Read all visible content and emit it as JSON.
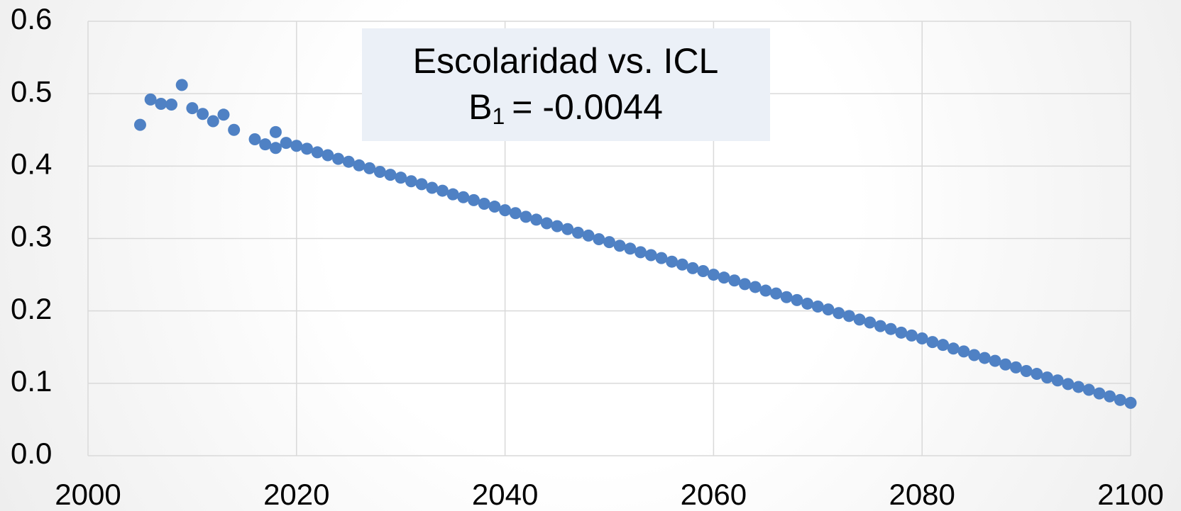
{
  "chart_data": {
    "type": "scatter",
    "title": "Escolaridad vs. ICL",
    "subtitle": {
      "text": "B",
      "sub": "1",
      "rest": "= -0.0044"
    },
    "series": [
      {
        "color": "#4f81c4",
        "x": [
          2005,
          2006,
          2007,
          2008,
          2009,
          2010,
          2011,
          2012,
          2013,
          2014,
          2016,
          2017,
          2018,
          2018,
          2019,
          2020,
          2021,
          2022,
          2023,
          2024,
          2025,
          2026,
          2027,
          2028,
          2029,
          2030,
          2031,
          2032,
          2033,
          2034,
          2035,
          2036,
          2037,
          2038,
          2039,
          2040,
          2041,
          2042,
          2043,
          2044,
          2045,
          2046,
          2047,
          2048,
          2049,
          2050,
          2051,
          2052,
          2053,
          2054,
          2055,
          2056,
          2057,
          2058,
          2059,
          2060,
          2061,
          2062,
          2063,
          2064,
          2065,
          2066,
          2067,
          2068,
          2069,
          2070,
          2071,
          2072,
          2073,
          2074,
          2075,
          2076,
          2077,
          2078,
          2079,
          2080,
          2081,
          2082,
          2083,
          2084,
          2085,
          2086,
          2087,
          2088,
          2089,
          2090,
          2091,
          2092,
          2093,
          2094,
          2095,
          2096,
          2097,
          2098,
          2099,
          2100
        ],
        "values": [
          0.457,
          0.492,
          0.486,
          0.485,
          0.512,
          0.48,
          0.472,
          0.462,
          0.471,
          0.45,
          0.437,
          0.43,
          0.447,
          0.425,
          0.432,
          0.428,
          0.424,
          0.419,
          0.415,
          0.41,
          0.406,
          0.401,
          0.397,
          0.392,
          0.388,
          0.384,
          0.379,
          0.375,
          0.37,
          0.366,
          0.361,
          0.357,
          0.353,
          0.348,
          0.344,
          0.339,
          0.335,
          0.33,
          0.326,
          0.321,
          0.317,
          0.313,
          0.308,
          0.304,
          0.299,
          0.295,
          0.29,
          0.286,
          0.281,
          0.277,
          0.273,
          0.268,
          0.264,
          0.259,
          0.255,
          0.25,
          0.246,
          0.242,
          0.237,
          0.233,
          0.228,
          0.224,
          0.219,
          0.215,
          0.21,
          0.206,
          0.202,
          0.197,
          0.193,
          0.188,
          0.184,
          0.179,
          0.175,
          0.17,
          0.166,
          0.162,
          0.157,
          0.153,
          0.148,
          0.144,
          0.139,
          0.135,
          0.131,
          0.126,
          0.122,
          0.117,
          0.113,
          0.108,
          0.104,
          0.099,
          0.095,
          0.091,
          0.086,
          0.082,
          0.077,
          0.073
        ]
      }
    ],
    "xlim": [
      2000,
      2100
    ],
    "xticks": [
      2000,
      2020,
      2040,
      2060,
      2080,
      2100
    ],
    "ylim": [
      0,
      0.6
    ],
    "yticks": [
      {
        "value": 0,
        "label": "0.0"
      },
      0.1,
      0.2,
      0.3,
      0.4,
      0.5,
      0.6
    ],
    "grid": true
  }
}
